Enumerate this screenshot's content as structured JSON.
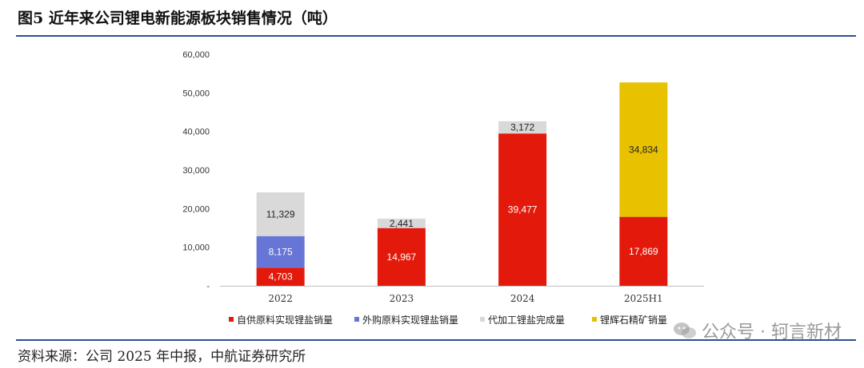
{
  "figure": {
    "title": "图5  近年来公司锂电新能源板块销售情况（吨）",
    "source": "资料来源：公司 2025 年中报，中航证券研究所"
  },
  "watermark": {
    "text": "公众号 · 轲言新材"
  },
  "chart_data": {
    "type": "bar",
    "stacked": true,
    "title": "",
    "xlabel": "",
    "ylabel": "",
    "categories": [
      "2022",
      "2023",
      "2024",
      "2025H1"
    ],
    "ylim": [
      0,
      60000
    ],
    "yticks": [
      0,
      10000,
      20000,
      30000,
      40000,
      50000,
      60000
    ],
    "ytick_labels": [
      "-",
      "10,000",
      "20,000",
      "30,000",
      "40,000",
      "50,000",
      "60,000"
    ],
    "grid": false,
    "legend_position": "bottom",
    "series": [
      {
        "name": "自供原料实现锂盐销量",
        "color": "#e31a0b",
        "label_color": "#ffffff",
        "values": [
          4703,
          14967,
          39477,
          17869
        ],
        "labels": [
          "4,703",
          "14,967",
          "39,477",
          "17,869"
        ]
      },
      {
        "name": "外购原料实现锂盐销量",
        "color": "#6675d6",
        "label_color": "#ffffff",
        "values": [
          8175,
          0,
          0,
          0
        ],
        "labels": [
          "8,175",
          "",
          "",
          ""
        ]
      },
      {
        "name": "代加工锂盐完成量",
        "color": "#d9d9d9",
        "label_color": "#222222",
        "values": [
          11329,
          2441,
          3172,
          0
        ],
        "labels": [
          "11,329",
          "2,441",
          "3,172",
          ""
        ]
      },
      {
        "name": "锂辉石精矿销量",
        "color": "#e8c100",
        "label_color": "#222222",
        "values": [
          0,
          0,
          0,
          34834
        ],
        "labels": [
          "",
          "",
          "",
          "34,834"
        ]
      }
    ]
  }
}
